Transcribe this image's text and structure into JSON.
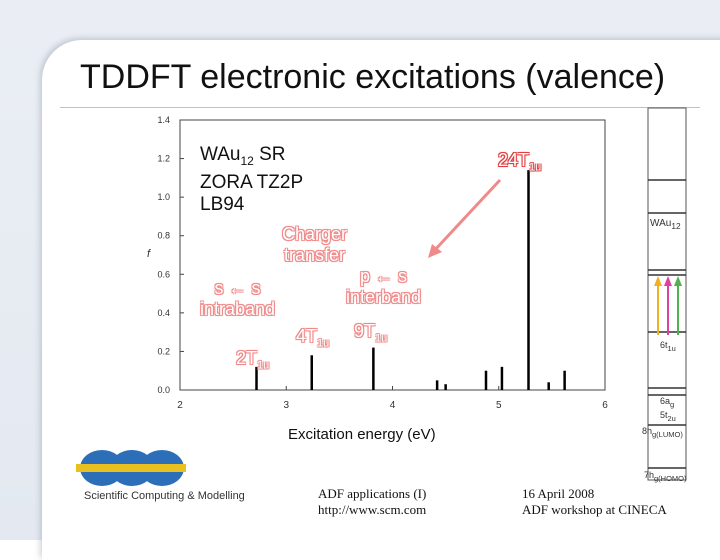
{
  "slide": {
    "title": "TDDFT electronic excitations (valence)"
  },
  "legend": {
    "line1": "WAu",
    "line1_sub": "12",
    "line1_rest": " SR",
    "line2": "ZORA TZ2P",
    "line3": "LB94"
  },
  "annotations": {
    "charge_transfer_1": "Charger",
    "charge_transfer_2": "transfer",
    "ss_1": "s ← s",
    "ss_2": "intraband",
    "ps_1": "p ← s",
    "ps_2": "interband",
    "t24": "24T",
    "t24_sub": "1u",
    "t4": "4T",
    "t4_sub": "1u",
    "t9": "9T",
    "t9_sub": "1u",
    "t2": "2T",
    "t2_sub": "1u"
  },
  "chart_data": {
    "type": "bar",
    "title": "",
    "xlabel": "Excitation energy (eV)",
    "ylabel": "f",
    "xlim": [
      2,
      6
    ],
    "ylim": [
      0,
      1.4
    ],
    "xticks": [
      "2",
      "3",
      "4",
      "5",
      "6"
    ],
    "yticks": [
      "0.0",
      "0.2",
      "0.4",
      "0.6",
      "0.8",
      "1.0",
      "1.2",
      "1.4"
    ],
    "peaks": [
      {
        "x": 2.72,
        "f": 0.12
      },
      {
        "x": 3.24,
        "f": 0.18
      },
      {
        "x": 3.82,
        "f": 0.22
      },
      {
        "x": 4.42,
        "f": 0.05
      },
      {
        "x": 4.5,
        "f": 0.03
      },
      {
        "x": 4.88,
        "f": 0.1
      },
      {
        "x": 5.03,
        "f": 0.12
      },
      {
        "x": 5.28,
        "f": 1.14
      },
      {
        "x": 5.47,
        "f": 0.04
      },
      {
        "x": 5.62,
        "f": 0.1
      }
    ]
  },
  "mo_diagram": {
    "labels": [
      "WAu",
      "12",
      "6t",
      "1u",
      "6a",
      "g",
      "5t",
      "2u",
      "8h",
      "g(LUMO)",
      "7h",
      "g(HOMO)"
    ]
  },
  "footer": {
    "logo_text": "Scientific Computing & Modelling",
    "center_line1": "ADF applications (I)",
    "center_line2": "http://www.scm.com",
    "right_line1": "16 April 2008",
    "right_line2": "ADF workshop at CINECA"
  }
}
